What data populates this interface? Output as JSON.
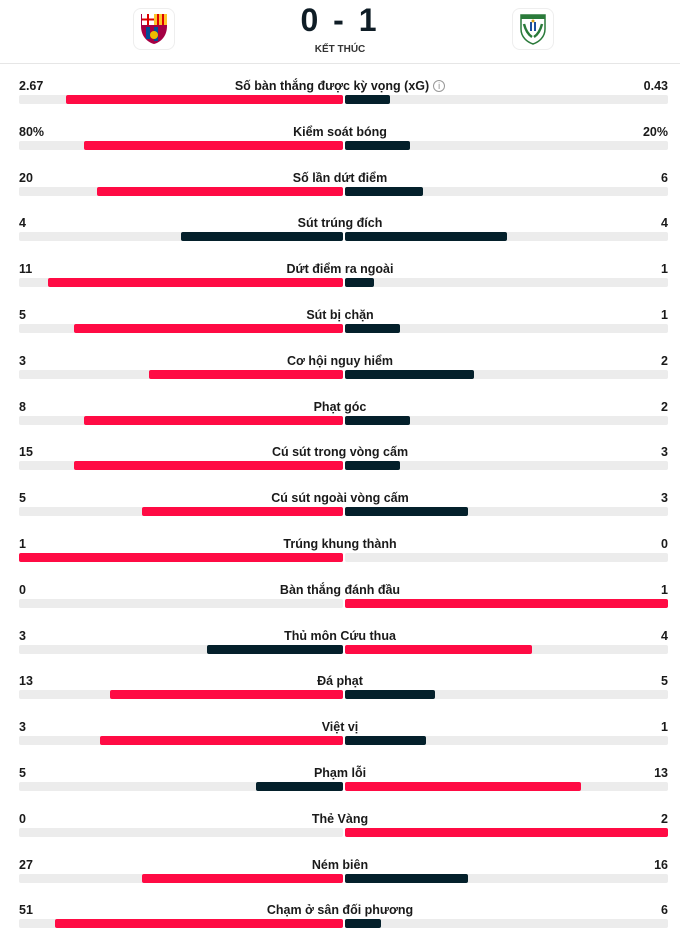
{
  "match": {
    "score": "0 - 1",
    "status": "KẾT THÚC",
    "home_logo": "fc-barcelona-crest",
    "away_logo": "cd-leganes-crest"
  },
  "colors": {
    "winner": "#ff0b44",
    "loser": "#04202b",
    "track": "#ececec"
  },
  "stats": [
    {
      "label": "Số bàn thắng được kỳ vọng (xG)",
      "home": "2.67",
      "away": "0.43",
      "home_fill": 0.855,
      "away_fill": 0.14,
      "home_win": true,
      "away_win": false,
      "info": true
    },
    {
      "label": "Kiểm soát bóng",
      "home": "80%",
      "away": "20%",
      "home_fill": 0.8,
      "away_fill": 0.2,
      "home_win": true,
      "away_win": false
    },
    {
      "label": "Số lần dứt điểm",
      "home": "20",
      "away": "6",
      "home_fill": 0.76,
      "away_fill": 0.24,
      "home_win": true,
      "away_win": false
    },
    {
      "label": "Sút trúng đích",
      "home": "4",
      "away": "4",
      "home_fill": 0.5,
      "away_fill": 0.5,
      "home_win": false,
      "away_win": false
    },
    {
      "label": "Dứt điểm ra ngoài",
      "home": "11",
      "away": "1",
      "home_fill": 0.91,
      "away_fill": 0.09,
      "home_win": true,
      "away_win": false
    },
    {
      "label": "Sút bị chặn",
      "home": "5",
      "away": "1",
      "home_fill": 0.83,
      "away_fill": 0.17,
      "home_win": true,
      "away_win": false
    },
    {
      "label": "Cơ hội nguy hiểm",
      "home": "3",
      "away": "2",
      "home_fill": 0.6,
      "away_fill": 0.4,
      "home_win": true,
      "away_win": false
    },
    {
      "label": "Phạt góc",
      "home": "8",
      "away": "2",
      "home_fill": 0.8,
      "away_fill": 0.2,
      "home_win": true,
      "away_win": false
    },
    {
      "label": "Cú sút trong vòng cấm",
      "home": "15",
      "away": "3",
      "home_fill": 0.83,
      "away_fill": 0.17,
      "home_win": true,
      "away_win": false
    },
    {
      "label": "Cú sút ngoài vòng cấm",
      "home": "5",
      "away": "3",
      "home_fill": 0.62,
      "away_fill": 0.38,
      "home_win": true,
      "away_win": false
    },
    {
      "label": "Trúng khung thành",
      "home": "1",
      "away": "0",
      "home_fill": 1.0,
      "away_fill": 0,
      "home_win": true,
      "away_win": false
    },
    {
      "label": "Bàn thắng đánh đầu",
      "home": "0",
      "away": "1",
      "home_fill": 0,
      "away_fill": 1.0,
      "home_win": false,
      "away_win": true
    },
    {
      "label": "Thủ môn Cứu thua",
      "home": "3",
      "away": "4",
      "home_fill": 0.42,
      "away_fill": 0.58,
      "home_win": false,
      "away_win": true
    },
    {
      "label": "Đá phạt",
      "home": "13",
      "away": "5",
      "home_fill": 0.72,
      "away_fill": 0.28,
      "home_win": true,
      "away_win": false
    },
    {
      "label": "Việt vị",
      "home": "3",
      "away": "1",
      "home_fill": 0.75,
      "away_fill": 0.25,
      "home_win": true,
      "away_win": false
    },
    {
      "label": "Phạm lỗi",
      "home": "5",
      "away": "13",
      "home_fill": 0.27,
      "away_fill": 0.73,
      "home_win": false,
      "away_win": true
    },
    {
      "label": "Thẻ Vàng",
      "home": "0",
      "away": "2",
      "home_fill": 0,
      "away_fill": 1.0,
      "home_win": false,
      "away_win": true
    },
    {
      "label": "Ném biên",
      "home": "27",
      "away": "16",
      "home_fill": 0.62,
      "away_fill": 0.38,
      "home_win": true,
      "away_win": false
    },
    {
      "label": "Chạm ở sân đối phương",
      "home": "51",
      "away": "6",
      "home_fill": 0.89,
      "away_fill": 0.11,
      "home_win": true,
      "away_win": false
    }
  ]
}
